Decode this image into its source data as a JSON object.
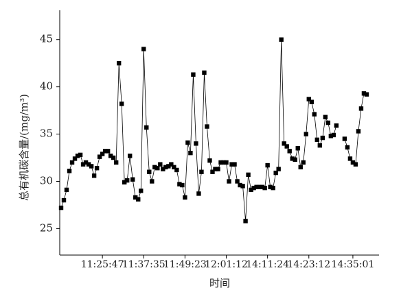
{
  "chart_data": {
    "type": "line",
    "x_label": "时间",
    "y_label": "总有机碳含量/(mg/m³)",
    "categories": [
      null,
      null,
      null,
      null,
      null,
      null,
      null,
      null,
      null,
      null,
      null,
      null,
      null,
      null,
      null,
      "11:25:47",
      null,
      null,
      null,
      null,
      null,
      null,
      null,
      null,
      null,
      null,
      null,
      null,
      null,
      null,
      "11:37:35",
      null,
      null,
      null,
      null,
      null,
      null,
      null,
      null,
      null,
      null,
      null,
      null,
      null,
      null,
      "11:49:23",
      null,
      null,
      null,
      null,
      null,
      null,
      null,
      null,
      null,
      null,
      null,
      null,
      null,
      null,
      "12:01:12",
      null,
      null,
      null,
      null,
      null,
      null,
      null,
      null,
      null,
      null,
      null,
      null,
      null,
      null,
      "14:11:24",
      null,
      null,
      null,
      null,
      null,
      null,
      null,
      null,
      null,
      null,
      null,
      null,
      null,
      null,
      "14:23:12",
      null,
      null,
      null,
      null,
      null,
      null,
      null,
      null,
      null,
      null,
      null,
      null,
      null,
      null,
      null,
      "14:35:01",
      null,
      null,
      null,
      null,
      null,
      null,
      null,
      null,
      null
    ],
    "series": [
      {
        "color": "#000000",
        "values": [
          27.2,
          28.0,
          29.1,
          31.1,
          32.0,
          32.4,
          32.7,
          32.8,
          31.8,
          32.0,
          31.8,
          31.6,
          30.6,
          31.4,
          32.6,
          32.9,
          33.2,
          33.2,
          32.7,
          32.5,
          32.0,
          42.5,
          38.2,
          29.9,
          30.1,
          32.7,
          30.2,
          28.3,
          28.1,
          29.0,
          44.0,
          35.7,
          31.0,
          30.0,
          31.5,
          31.4,
          31.8,
          31.3,
          31.5,
          31.6,
          31.8,
          31.5,
          31.2,
          29.7,
          29.6,
          28.3,
          34.1,
          33.0,
          41.3,
          34.0,
          28.7,
          31.0,
          41.5,
          35.8,
          32.2,
          31.0,
          31.3,
          31.3,
          32.0,
          32.0,
          32.0,
          30.0,
          31.8,
          31.8,
          30.0,
          29.6,
          29.5,
          25.8,
          30.7,
          29.1,
          29.3,
          29.4,
          29.4,
          29.4,
          29.3,
          31.7,
          29.4,
          29.3,
          30.9,
          31.3,
          45.0,
          34.0,
          33.7,
          33.2,
          32.4,
          32.3,
          33.5,
          31.5,
          32.0,
          35.0,
          38.7,
          38.4,
          37.1,
          34.4,
          33.8,
          34.6,
          36.8,
          36.2,
          34.8,
          34.9,
          35.9,
          null,
          null,
          34.5,
          33.6,
          32.4,
          32.0,
          31.8,
          35.3,
          37.7,
          39.3,
          39.2,
          null,
          null,
          null,
          null
        ]
      }
    ],
    "ylim": [
      22.2,
      48.1
    ],
    "yticks": [
      25,
      30,
      35,
      40,
      45
    ],
    "grid": false
  }
}
